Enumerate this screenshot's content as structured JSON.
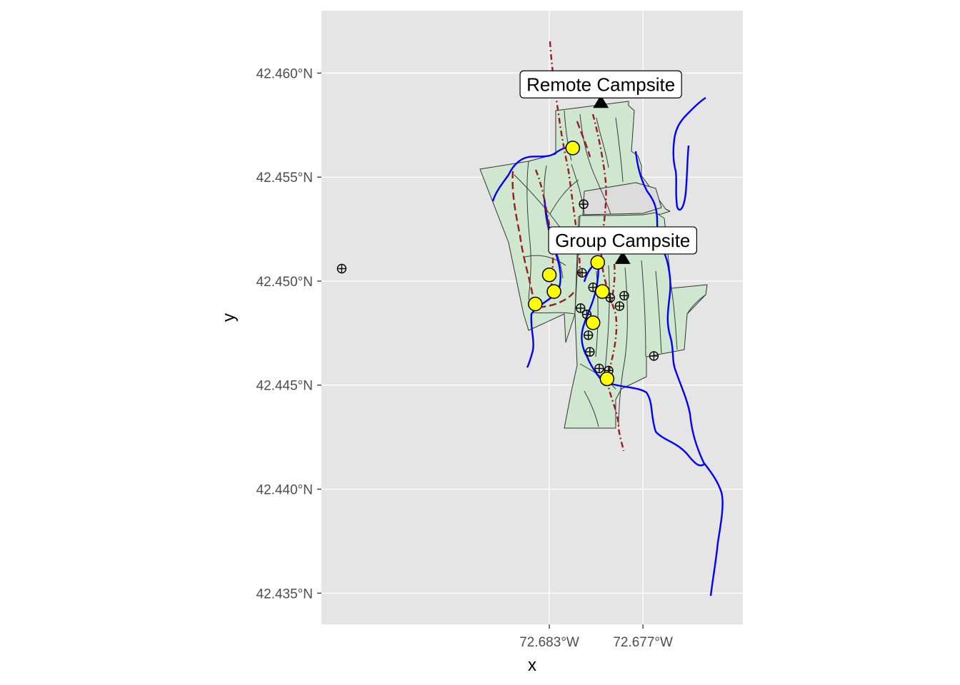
{
  "plot": {
    "xlabel": "x",
    "ylabel": "y",
    "panel_background": "#e5e5e5",
    "gridline_color": "#ffffff"
  },
  "y_ticks": [
    {
      "value": 42.46,
      "label": "42.460°N"
    },
    {
      "value": 42.455,
      "label": "42.455°N"
    },
    {
      "value": 42.45,
      "label": "42.450°N"
    },
    {
      "value": 42.445,
      "label": "42.445°N"
    },
    {
      "value": 42.44,
      "label": "42.440°N"
    },
    {
      "value": 42.435,
      "label": "42.435°N"
    }
  ],
  "x_ticks": [
    {
      "value": -72.683,
      "label": "72.683°W"
    },
    {
      "value": -72.677,
      "label": "72.677°W"
    }
  ],
  "campsites": [
    {
      "name": "Remote Campsite",
      "lon": -72.6797,
      "lat": 42.4586
    },
    {
      "name": "Group Campsite",
      "lon": -72.6783,
      "lat": 42.4511
    }
  ],
  "colors": {
    "park_fill": "#cfe6cf",
    "park_outline": "#333333",
    "stream": "#0000ff",
    "trail": "#9b1c1c",
    "landmark_fill": "#ffff00",
    "campsite": "#000000",
    "inaccessible_fill": "#dcdcdc"
  },
  "chart_data": {
    "type": "map",
    "xlabel": "x",
    "ylabel": "y",
    "xlim": [
      -72.6976,
      -72.6706
    ],
    "ylim": [
      42.4335,
      42.463
    ],
    "crs_labels": "degrees",
    "grid": true,
    "layers": {
      "campsites": [
        {
          "name": "Remote Campsite",
          "lon": -72.6797,
          "lat": 42.4586
        },
        {
          "name": "Group Campsite",
          "lon": -72.6783,
          "lat": 42.4511
        }
      ],
      "highlight_points": [
        {
          "lon": -72.6815,
          "lat": 42.4564
        },
        {
          "lon": -72.683,
          "lat": 42.4503
        },
        {
          "lon": -72.6827,
          "lat": 42.4495
        },
        {
          "lon": -72.6839,
          "lat": 42.4489
        },
        {
          "lon": -72.6799,
          "lat": 42.4509
        },
        {
          "lon": -72.6796,
          "lat": 42.4495
        },
        {
          "lon": -72.6802,
          "lat": 42.448
        },
        {
          "lon": -72.6793,
          "lat": 42.4453
        }
      ],
      "crossed_points": [
        {
          "lon": -72.6808,
          "lat": 42.4537
        },
        {
          "lon": -72.6809,
          "lat": 42.4504
        },
        {
          "lon": -72.6802,
          "lat": 42.4497
        },
        {
          "lon": -72.6791,
          "lat": 42.4492
        },
        {
          "lon": -72.6782,
          "lat": 42.4493
        },
        {
          "lon": -72.6785,
          "lat": 42.4488
        },
        {
          "lon": -72.681,
          "lat": 42.4487
        },
        {
          "lon": -72.6806,
          "lat": 42.4484
        },
        {
          "lon": -72.6805,
          "lat": 42.4474
        },
        {
          "lon": -72.6804,
          "lat": 42.4466
        },
        {
          "lon": -72.6798,
          "lat": 42.4458
        },
        {
          "lon": -72.6792,
          "lat": 42.4457
        },
        {
          "lon": -72.6763,
          "lat": 42.4464
        },
        {
          "lon": -72.6963,
          "lat": 42.4506
        }
      ]
    }
  }
}
